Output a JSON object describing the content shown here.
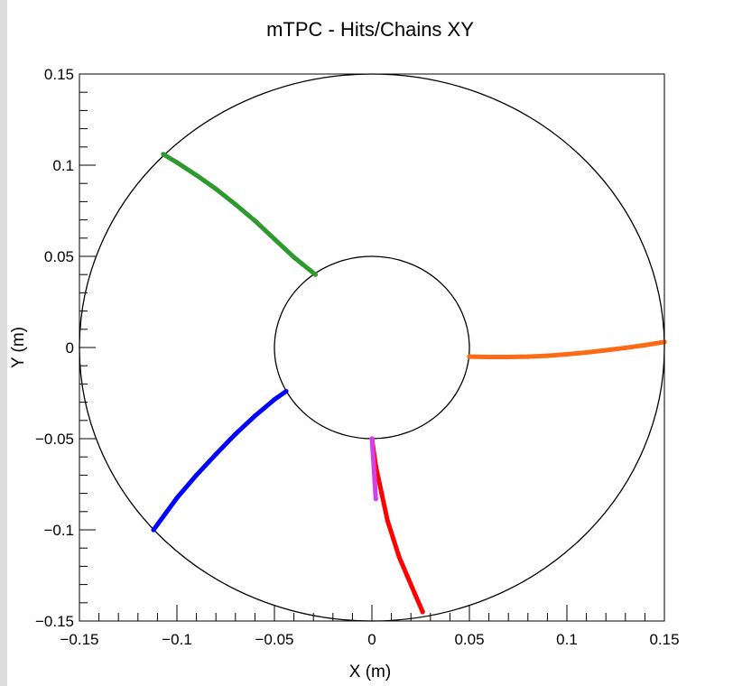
{
  "chart_data": {
    "type": "scatter",
    "title": "mTPC - Hits/Chains XY",
    "xlabel": "X (m)",
    "ylabel": "Y (m)",
    "xlim": [
      -0.15,
      0.15
    ],
    "ylim": [
      -0.15,
      0.15
    ],
    "x_ticks": [
      {
        "value": -0.15,
        "label": "−0.15"
      },
      {
        "value": -0.1,
        "label": "−0.1"
      },
      {
        "value": -0.05,
        "label": "−0.05"
      },
      {
        "value": 0,
        "label": "0"
      },
      {
        "value": 0.05,
        "label": "0.05"
      },
      {
        "value": 0.1,
        "label": "0.1"
      },
      {
        "value": 0.15,
        "label": "0.15"
      }
    ],
    "y_ticks": [
      {
        "value": -0.15,
        "label": "−0.15"
      },
      {
        "value": -0.1,
        "label": "−0.1"
      },
      {
        "value": -0.05,
        "label": "−0.05"
      },
      {
        "value": 0,
        "label": "0"
      },
      {
        "value": 0.05,
        "label": "0.05"
      },
      {
        "value": 0.1,
        "label": "0.1"
      },
      {
        "value": 0.15,
        "label": "0.15"
      }
    ],
    "grid": false,
    "legend": "none",
    "circles": [
      {
        "cx": 0,
        "cy": 0,
        "r": 0.15,
        "color": "#000000"
      },
      {
        "cx": 0,
        "cy": 0,
        "r": 0.05,
        "color": "#000000"
      }
    ],
    "series": [
      {
        "color": "#2e9a2e",
        "x": [
          -0.107,
          -0.1,
          -0.09,
          -0.08,
          -0.07,
          -0.06,
          -0.05,
          -0.04,
          -0.029
        ],
        "y": [
          0.106,
          0.1015,
          0.0945,
          0.087,
          0.0785,
          0.0695,
          0.0595,
          0.0495,
          0.04
        ]
      },
      {
        "color": "#ff6a14",
        "x": [
          0.05,
          0.06,
          0.07,
          0.08,
          0.09,
          0.1,
          0.11,
          0.12,
          0.13,
          0.14,
          0.15
        ],
        "y": [
          -0.005,
          -0.0052,
          -0.0052,
          -0.005,
          -0.0045,
          -0.0037,
          -0.0027,
          -0.0015,
          -0.0002,
          0.0013,
          0.003
        ]
      },
      {
        "color": "#0000ff",
        "x": [
          -0.044,
          -0.05,
          -0.06,
          -0.07,
          -0.08,
          -0.09,
          -0.1,
          -0.112
        ],
        "y": [
          -0.024,
          -0.0285,
          -0.0375,
          -0.0475,
          -0.0585,
          -0.07,
          -0.0825,
          -0.1
        ]
      },
      {
        "color": "#ff0000",
        "x": [
          0,
          0.002,
          0.005,
          0.008,
          0.011,
          0.014,
          0.018,
          0.022,
          0.026
        ],
        "y": [
          -0.05,
          -0.065,
          -0.08,
          -0.095,
          -0.105,
          -0.115,
          -0.125,
          -0.135,
          -0.145
        ]
      },
      {
        "color": "#d63fe8",
        "x": [
          0,
          0.0005,
          0.001,
          0.0015,
          0.002
        ],
        "y": [
          -0.05,
          -0.058,
          -0.066,
          -0.074,
          -0.083
        ]
      }
    ]
  }
}
